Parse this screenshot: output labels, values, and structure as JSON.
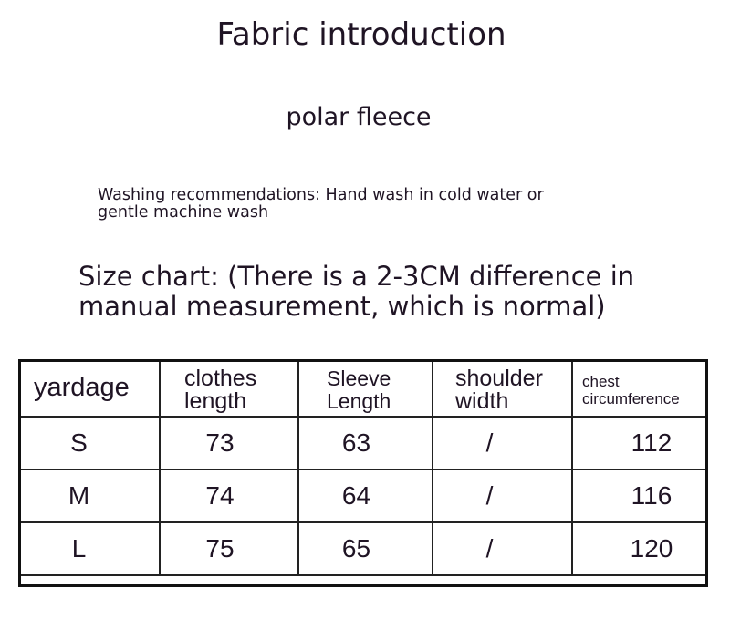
{
  "title": "Fabric introduction",
  "fabric": "polar fleece",
  "washing": "Washing recommendations: Hand wash in cold water or gentle machine wash",
  "size_chart_note": "Size chart: (There is a 2-3CM difference in manual measurement, which is normal)",
  "table": {
    "headers": [
      "yardage",
      "clothes length",
      "Sleeve Length",
      "shoulder width",
      "chest circumference"
    ],
    "rows": [
      [
        "S",
        "73",
        "63",
        "/",
        "112"
      ],
      [
        "M",
        "74",
        "64",
        "/",
        "116"
      ],
      [
        "L",
        "75",
        "65",
        "/",
        "120"
      ]
    ]
  }
}
